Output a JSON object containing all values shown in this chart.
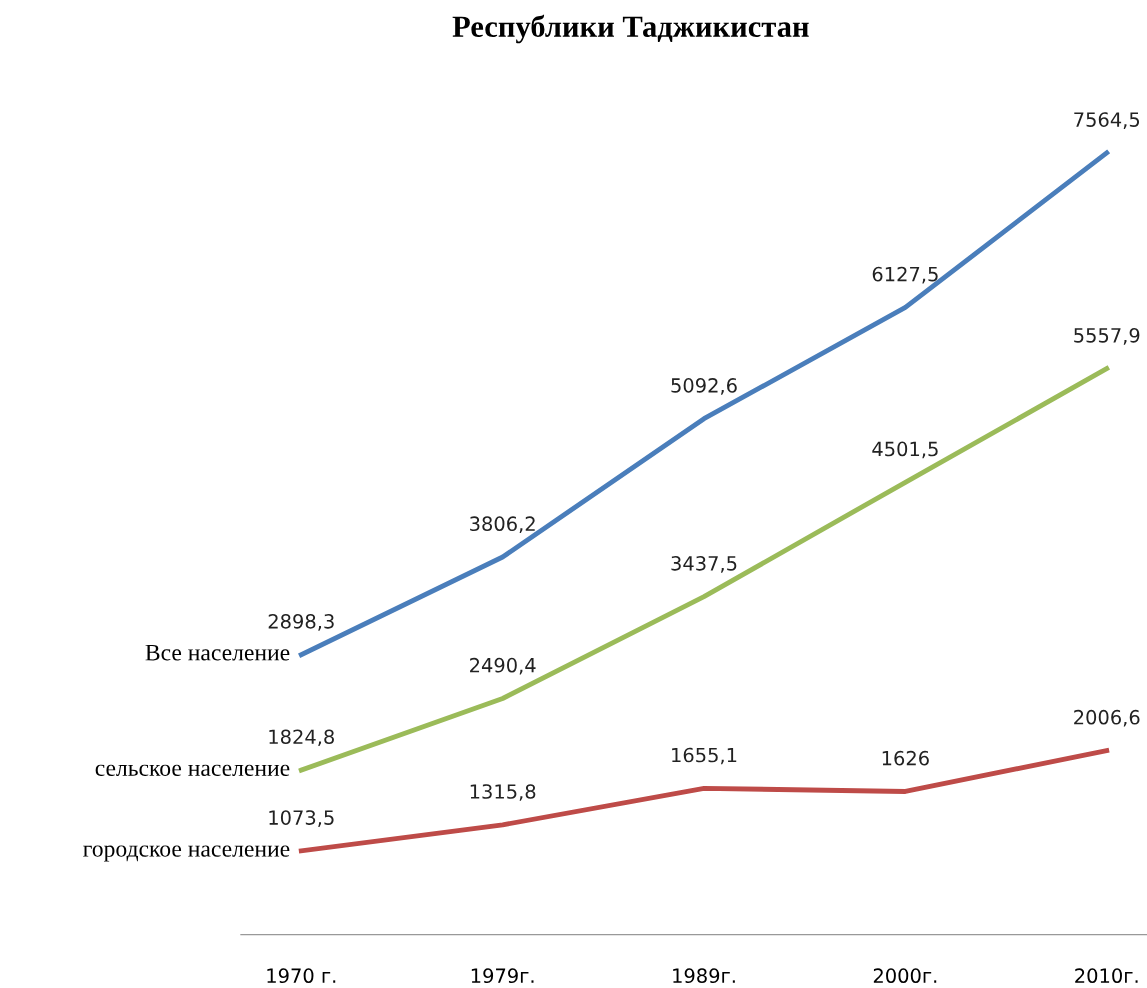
{
  "chart_data": {
    "type": "line",
    "title": "Республики Таджикистан",
    "categories": [
      "1970 г.",
      "1979г.",
      "1989г.",
      "2000г.",
      "2010г."
    ],
    "series": [
      {
        "name": "Все население",
        "color": "#4a7ebb",
        "values": [
          2898.3,
          3806.2,
          5092.6,
          6127.5,
          7564.5
        ],
        "value_labels": [
          "2898,3",
          "3806,2",
          "5092,6",
          "6127,5",
          "7564,5"
        ]
      },
      {
        "name": "сельское население",
        "color": "#9bbb59",
        "values": [
          1824.8,
          2490.4,
          3437.5,
          4501.5,
          5557.9
        ],
        "value_labels": [
          "1824,8",
          "2490,4",
          "3437,5",
          "4501,5",
          "5557,9"
        ]
      },
      {
        "name": "городское население",
        "color": "#be4b48",
        "values": [
          1073.5,
          1315.8,
          1655.1,
          1626,
          2006.6
        ],
        "value_labels": [
          "1073,5",
          "1315,8",
          "1655,1",
          "1626",
          "2006,6"
        ]
      }
    ],
    "tick_labels": "x",
    "marker": "none",
    "line_style": "solid"
  }
}
